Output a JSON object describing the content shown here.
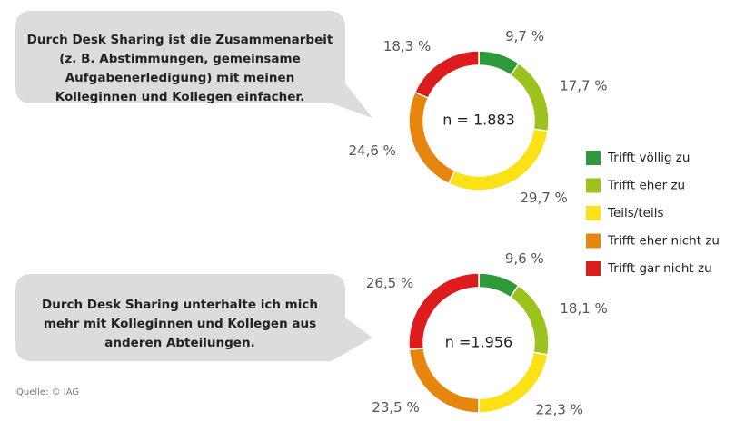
{
  "chart_data": [
    {
      "type": "donut",
      "question": [
        "Durch Desk Sharing ist die Zusammenarbeit",
        "(z. B. Abstimmungen, gemeinsame",
        "Aufgabenerledigung) mit meinen",
        "Kolleginnen und Kollegen einfacher."
      ],
      "center_label": "n = 1.883",
      "values": [
        9.7,
        17.7,
        29.7,
        24.6,
        18.3
      ],
      "value_labels": [
        "9,7 %",
        "17,7 %",
        "29,7 %",
        "24,6 %",
        "18,3 %"
      ]
    },
    {
      "type": "donut",
      "question": [
        "Durch Desk Sharing unterhalte ich mich",
        "mehr mit Kolleginnen und Kollegen aus",
        "anderen Abteilungen."
      ],
      "center_label": "n =1.956",
      "values": [
        9.6,
        18.1,
        22.3,
        23.5,
        26.5
      ],
      "value_labels": [
        "9,6 %",
        "18,1 %",
        "22,3 %",
        "23,5 %",
        "26,5 %"
      ]
    }
  ],
  "legend": {
    "categories": [
      "Trifft völlig zu",
      "Trifft eher zu",
      "Teils/teils",
      "Trifft eher nicht zu",
      "Trifft gar nicht zu"
    ],
    "colors": [
      "#2e9a3b",
      "#9bc21d",
      "#fbe115",
      "#e7860f",
      "#dd1d1d"
    ]
  },
  "source": "Quelle: © IAG"
}
